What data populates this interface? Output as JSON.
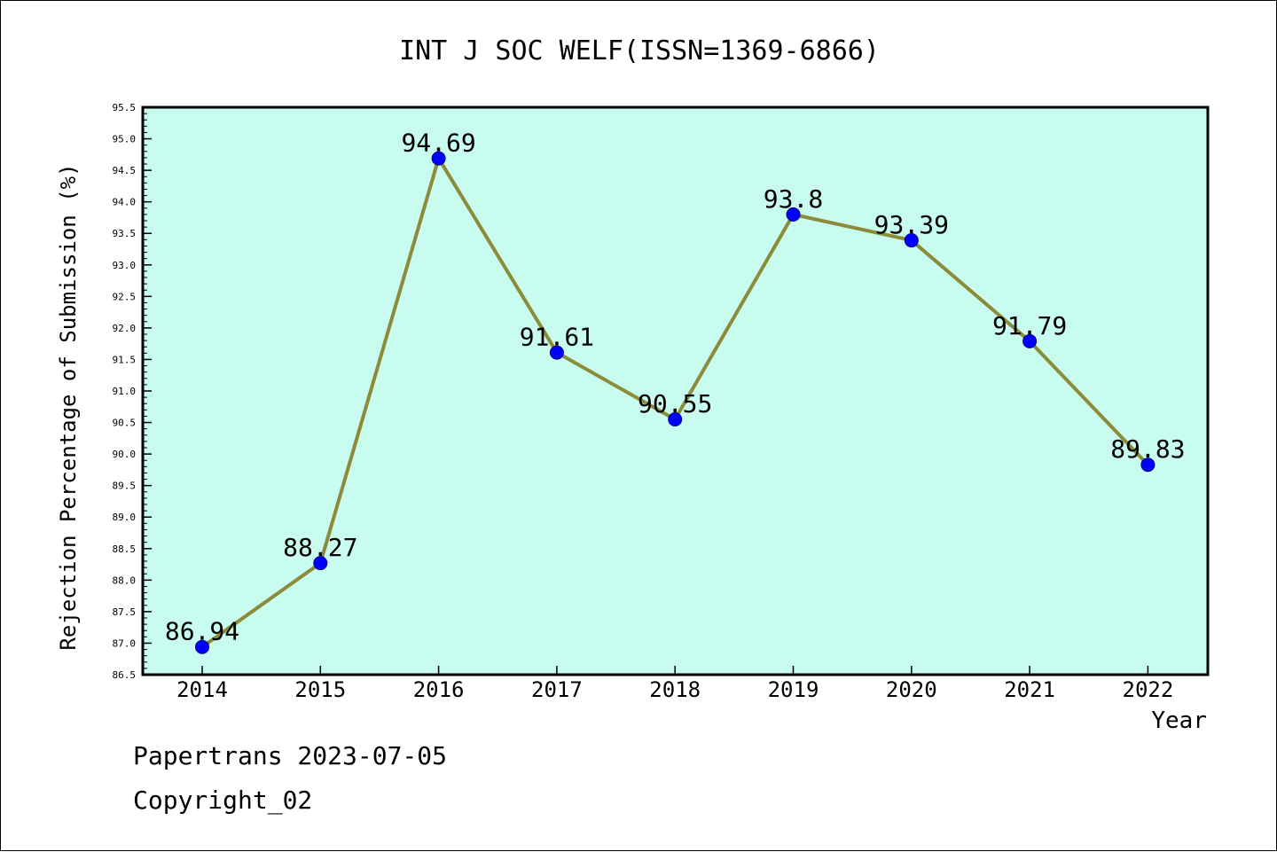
{
  "colors": {
    "background": "#ffffff",
    "plot_background": "#c8fcee",
    "line": "#8b8b3a",
    "marker": "#0000ff",
    "text": "#000000"
  },
  "chart_data": {
    "type": "line",
    "title": "INT J SOC WELF(ISSN=1369-6866)",
    "xlabel": "Year",
    "ylabel": "Rejection Percentage of Submission (%)",
    "categories": [
      "2014",
      "2015",
      "2016",
      "2017",
      "2018",
      "2019",
      "2020",
      "2021",
      "2022"
    ],
    "series": [
      {
        "values": [
          86.94,
          88.27,
          94.69,
          91.61,
          90.55,
          93.8,
          93.39,
          91.79,
          89.83
        ],
        "point_labels": [
          "86.94",
          "88.27",
          "94.69",
          "91.61",
          "90.55",
          "93.8",
          "93.39",
          "91.79",
          "89.83"
        ]
      }
    ],
    "ylim": [
      86.5,
      95.5
    ],
    "yticks": [
      "86.5",
      "87.0",
      "87.5",
      "88.0",
      "88.5",
      "89.0",
      "89.5",
      "90.0",
      "90.5",
      "91.0",
      "91.5",
      "92.0",
      "92.5",
      "93.0",
      "93.5",
      "94.0",
      "94.5",
      "95.0",
      "95.5"
    ],
    "grid": false,
    "legend": "none"
  },
  "footer": {
    "line1": "Papertrans 2023-07-05",
    "line2": "Copyright_02"
  }
}
